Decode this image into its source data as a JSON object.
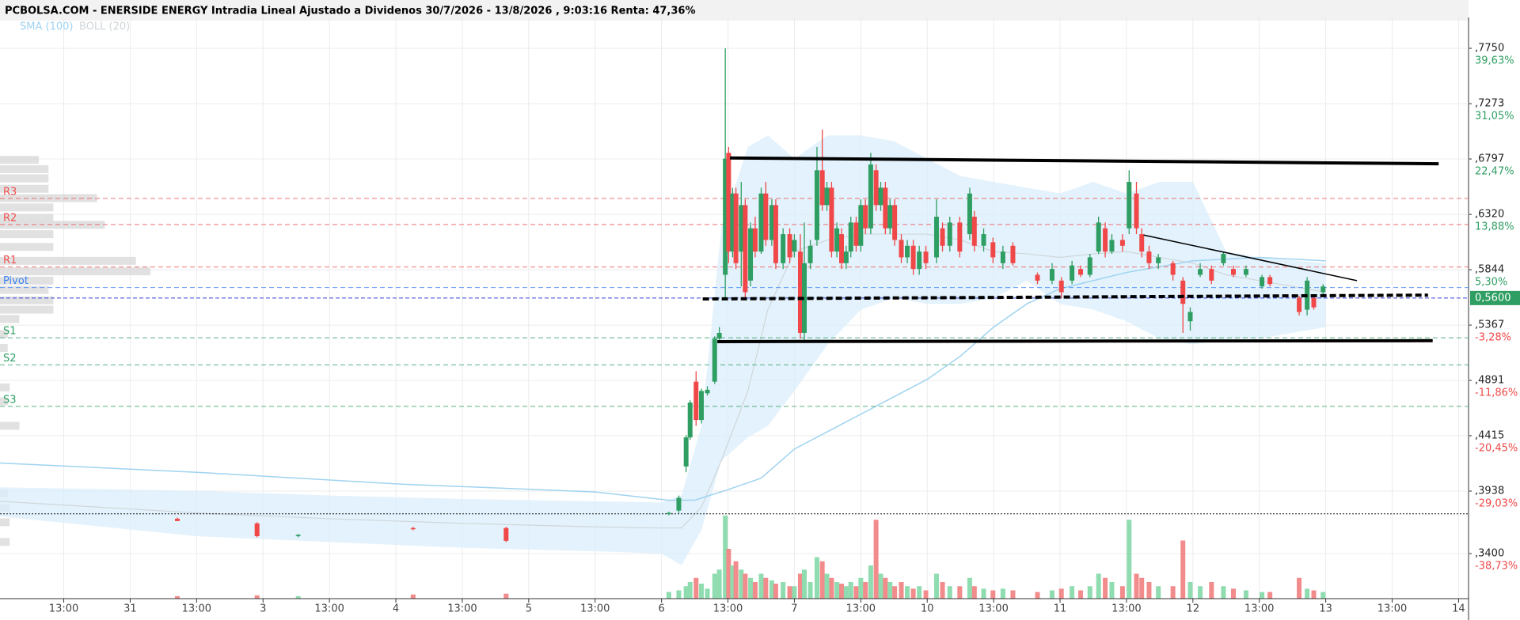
{
  "chart_data": {
    "type": "candlestick",
    "title": "PCBOLSA.COM - ENERSIDE ENERGY Intradia Lineal Ajustado a Dividenos 30/7/2026 - 13/8/2026 , 9:03:16 Renta: 47,36%",
    "indicators": [
      {
        "name": "SMA (100)",
        "color": "#9fd3f0"
      },
      {
        "name": "BOLL (20)",
        "color": "#d0d6da"
      }
    ],
    "up_color": "#2e9e62",
    "down_color": "#f04848",
    "up_volume_color": "#8fdcb0",
    "down_volume_color": "#f28b8b",
    "xlim": [
      -0.96,
      21.15
    ],
    "ylim": [
      0.3012,
      0.8016
    ],
    "grid": true,
    "xticks": [
      {
        "value": 0,
        "label": "13:00"
      },
      {
        "value": 1,
        "label": "31"
      },
      {
        "value": 2,
        "label": "13:00"
      },
      {
        "value": 3,
        "label": "3"
      },
      {
        "value": 4,
        "label": "13:00"
      },
      {
        "value": 5,
        "label": "4"
      },
      {
        "value": 6,
        "label": "13:00"
      },
      {
        "value": 7,
        "label": "5"
      },
      {
        "value": 8,
        "label": "13:00"
      },
      {
        "value": 9,
        "label": "6"
      },
      {
        "value": 10,
        "label": "13:00"
      },
      {
        "value": 11,
        "label": "7"
      },
      {
        "value": 12,
        "label": "13:00"
      },
      {
        "value": 13,
        "label": "10"
      },
      {
        "value": 14,
        "label": "13:00"
      },
      {
        "value": 15,
        "label": "11"
      },
      {
        "value": 16,
        "label": "13:00"
      },
      {
        "value": 17,
        "label": "12"
      },
      {
        "value": 18,
        "label": "13:00"
      },
      {
        "value": 19,
        "label": "13"
      },
      {
        "value": 20,
        "label": "13:00"
      },
      {
        "value": 21,
        "label": "14"
      }
    ],
    "yticks": [
      {
        "value": 0.775,
        "label": ",7750"
      },
      {
        "value": 0.7273,
        "label": ",7273"
      },
      {
        "value": 0.6797,
        "label": ",6797"
      },
      {
        "value": 0.632,
        "label": ",6320"
      },
      {
        "value": 0.5844,
        "label": ",5844"
      },
      {
        "value": 0.5367,
        "label": ",5367"
      },
      {
        "value": 0.4891,
        "label": ",4891"
      },
      {
        "value": 0.4415,
        "label": ",4415"
      },
      {
        "value": 0.3938,
        "label": ",3938"
      },
      {
        "value": 0.34,
        "label": ",3400"
      }
    ],
    "ytick_returns": [
      {
        "value": 39.63,
        "label": "39,63%"
      },
      {
        "value": 31.05,
        "label": "31,05%"
      },
      {
        "value": 22.47,
        "label": "22,47%"
      },
      {
        "value": 13.88,
        "label": "13,88%"
      },
      {
        "value": 5.3,
        "label": "5,30%"
      },
      {
        "value": -3.28,
        "label": "-3,28%"
      },
      {
        "value": -11.86,
        "label": "-11,86%"
      },
      {
        "value": -20.45,
        "label": "-20,45%"
      },
      {
        "value": -29.03,
        "label": "-29,03%"
      },
      {
        "value": -38.73,
        "label": "-38,73%"
      }
    ],
    "last": {
      "value": 0.56,
      "label": "0,5600",
      "color": "#2e9e62"
    },
    "levels": [
      {
        "name": "R3",
        "value": 0.6458,
        "color": "#f05050"
      },
      {
        "name": "R2",
        "value": 0.6233,
        "color": "#f05050"
      },
      {
        "name": "R1",
        "value": 0.5867,
        "color": "#f05050"
      },
      {
        "name": "Pivot",
        "value": 0.569,
        "color": "#3b82f6"
      },
      {
        "name": "S1",
        "value": 0.5258,
        "color": "#2e9e62"
      },
      {
        "name": "S2",
        "value": 0.5025,
        "color": "#2e9e62"
      },
      {
        "name": "S3",
        "value": 0.4667,
        "color": "#2e9e62"
      }
    ],
    "last_line_color": "#3344dd",
    "ref_line": 0.3742,
    "x": [
      1.71,
      2.91,
      3.53,
      5.26,
      6.66,
      9.11,
      9.26,
      9.37,
      9.43,
      9.52,
      9.6,
      9.69,
      9.8,
      9.87,
      9.96,
      10.01,
      10.07,
      10.12,
      10.2,
      10.26,
      10.34,
      10.41,
      10.5,
      10.57,
      10.66,
      10.72,
      10.83,
      10.93,
      11.0,
      11.09,
      11.15,
      11.24,
      11.34,
      11.42,
      11.49,
      11.56,
      11.64,
      11.71,
      11.78,
      11.85,
      11.93,
      12.0,
      12.07,
      12.15,
      12.23,
      12.3,
      12.37,
      12.44,
      12.51,
      12.61,
      12.7,
      12.79,
      12.88,
      12.98,
      13.14,
      13.23,
      13.34,
      13.49,
      13.64,
      13.71,
      13.85,
      13.99,
      14.14,
      14.29,
      14.66,
      14.88,
      15.02,
      15.18,
      15.31,
      15.45,
      15.58,
      15.68,
      15.78,
      15.94,
      16.04,
      16.15,
      16.23,
      16.34,
      16.48,
      16.7,
      16.85,
      16.96,
      17.11,
      17.28,
      17.46,
      17.61,
      17.8,
      18.04,
      18.16,
      18.6,
      18.72,
      18.82,
      18.96
    ],
    "open": [
      0.37,
      0.366,
      0.355,
      0.362,
      0.362,
      0.374,
      0.377,
      0.415,
      0.44,
      0.488,
      0.455,
      0.478,
      0.488,
      0.525,
      0.58,
      0.685,
      0.6,
      0.65,
      0.6,
      0.64,
      0.575,
      0.62,
      0.6,
      0.65,
      0.61,
      0.64,
      0.59,
      0.615,
      0.6,
      0.6,
      0.53,
      0.59,
      0.61,
      0.67,
      0.64,
      0.655,
      0.6,
      0.615,
      0.59,
      0.6,
      0.625,
      0.605,
      0.64,
      0.62,
      0.67,
      0.64,
      0.655,
      0.62,
      0.64,
      0.61,
      0.595,
      0.605,
      0.585,
      0.6,
      0.595,
      0.62,
      0.605,
      0.625,
      0.615,
      0.63,
      0.605,
      0.608,
      0.59,
      0.605,
      0.58,
      0.575,
      0.575,
      0.575,
      0.585,
      0.58,
      0.6,
      0.62,
      0.6,
      0.61,
      0.62,
      0.65,
      0.615,
      0.6,
      0.59,
      0.59,
      0.575,
      0.54,
      0.58,
      0.585,
      0.59,
      0.585,
      0.58,
      0.57,
      0.578,
      0.56,
      0.55,
      0.56,
      0.565
    ],
    "high": [
      0.371,
      0.367,
      0.357,
      0.363,
      0.363,
      0.376,
      0.39,
      0.442,
      0.472,
      0.497,
      0.482,
      0.484,
      0.527,
      0.535,
      0.775,
      0.69,
      0.655,
      0.655,
      0.66,
      0.645,
      0.625,
      0.63,
      0.655,
      0.66,
      0.645,
      0.645,
      0.62,
      0.62,
      0.615,
      0.615,
      0.625,
      0.61,
      0.69,
      0.705,
      0.66,
      0.66,
      0.625,
      0.62,
      0.605,
      0.63,
      0.63,
      0.645,
      0.645,
      0.685,
      0.675,
      0.66,
      0.66,
      0.645,
      0.645,
      0.615,
      0.61,
      0.61,
      0.605,
      0.605,
      0.645,
      0.625,
      0.63,
      0.63,
      0.655,
      0.635,
      0.62,
      0.612,
      0.605,
      0.608,
      0.582,
      0.59,
      0.578,
      0.592,
      0.588,
      0.598,
      0.63,
      0.625,
      0.615,
      0.615,
      0.67,
      0.66,
      0.62,
      0.605,
      0.598,
      0.592,
      0.578,
      0.552,
      0.59,
      0.588,
      0.6,
      0.588,
      0.588,
      0.58,
      0.58,
      0.562,
      0.578,
      0.562,
      0.572
    ],
    "low": [
      0.368,
      0.354,
      0.354,
      0.36,
      0.35,
      0.373,
      0.375,
      0.41,
      0.438,
      0.45,
      0.452,
      0.476,
      0.486,
      0.522,
      0.56,
      0.59,
      0.595,
      0.585,
      0.57,
      0.558,
      0.57,
      0.595,
      0.598,
      0.605,
      0.605,
      0.585,
      0.585,
      0.59,
      0.595,
      0.525,
      0.522,
      0.585,
      0.605,
      0.635,
      0.635,
      0.595,
      0.595,
      0.585,
      0.585,
      0.595,
      0.6,
      0.6,
      0.615,
      0.615,
      0.635,
      0.635,
      0.615,
      0.615,
      0.605,
      0.59,
      0.59,
      0.58,
      0.58,
      0.585,
      0.59,
      0.6,
      0.6,
      0.595,
      0.61,
      0.6,
      0.6,
      0.59,
      0.585,
      0.588,
      0.572,
      0.572,
      0.56,
      0.572,
      0.578,
      0.578,
      0.598,
      0.595,
      0.598,
      0.6,
      0.615,
      0.615,
      0.595,
      0.585,
      0.585,
      0.575,
      0.53,
      0.532,
      0.578,
      0.572,
      0.588,
      0.578,
      0.578,
      0.568,
      0.57,
      0.545,
      0.545,
      0.55,
      0.562
    ],
    "close": [
      0.368,
      0.355,
      0.356,
      0.361,
      0.351,
      0.375,
      0.388,
      0.44,
      0.47,
      0.455,
      0.48,
      0.481,
      0.525,
      0.53,
      0.68,
      0.6,
      0.65,
      0.59,
      0.64,
      0.565,
      0.62,
      0.6,
      0.65,
      0.61,
      0.64,
      0.59,
      0.615,
      0.595,
      0.61,
      0.53,
      0.59,
      0.605,
      0.67,
      0.64,
      0.655,
      0.6,
      0.62,
      0.59,
      0.6,
      0.625,
      0.605,
      0.64,
      0.62,
      0.675,
      0.64,
      0.655,
      0.62,
      0.64,
      0.61,
      0.595,
      0.605,
      0.585,
      0.6,
      0.59,
      0.63,
      0.605,
      0.625,
      0.6,
      0.65,
      0.605,
      0.615,
      0.595,
      0.6,
      0.59,
      0.575,
      0.585,
      0.565,
      0.588,
      0.58,
      0.595,
      0.625,
      0.6,
      0.61,
      0.605,
      0.66,
      0.62,
      0.6,
      0.59,
      0.595,
      0.58,
      0.555,
      0.548,
      0.585,
      0.575,
      0.598,
      0.58,
      0.585,
      0.578,
      0.572,
      0.548,
      0.575,
      0.552,
      0.57
    ],
    "volume": [
      3,
      4,
      3,
      5,
      6,
      8,
      10,
      15,
      20,
      25,
      18,
      12,
      30,
      35,
      100,
      60,
      40,
      45,
      35,
      30,
      25,
      20,
      30,
      25,
      22,
      18,
      20,
      15,
      15,
      30,
      35,
      20,
      50,
      45,
      30,
      25,
      20,
      18,
      15,
      20,
      15,
      25,
      20,
      40,
      95,
      30,
      25,
      20,
      15,
      20,
      15,
      12,
      15,
      10,
      30,
      20,
      15,
      15,
      25,
      15,
      12,
      10,
      12,
      10,
      8,
      10,
      12,
      15,
      10,
      15,
      30,
      25,
      20,
      15,
      95,
      30,
      25,
      20,
      15,
      15,
      70,
      20,
      15,
      20,
      15,
      12,
      10,
      8,
      8,
      25,
      12,
      10,
      8
    ],
    "sma": {
      "x": [
        -0.96,
        2,
        5,
        8,
        9.1,
        9.5,
        10,
        10.5,
        11,
        11.5,
        12,
        12.5,
        13,
        13.5,
        14,
        14.5,
        15,
        15.5,
        16,
        17,
        18,
        19
      ],
      "values": [
        0.418,
        0.41,
        0.4,
        0.393,
        0.386,
        0.386,
        0.395,
        0.405,
        0.43,
        0.445,
        0.46,
        0.475,
        0.49,
        0.51,
        0.535,
        0.555,
        0.568,
        0.575,
        0.582,
        0.592,
        0.595,
        0.592
      ]
    },
    "boll": {
      "x": [
        -0.96,
        2,
        4,
        6,
        8,
        9,
        9.3,
        9.6,
        9.9,
        10.3,
        10.6,
        11,
        11.5,
        12,
        12.5,
        13,
        13.5,
        14,
        14.5,
        15,
        15.5,
        16,
        16.5,
        17,
        17.5,
        18,
        19
      ],
      "upper": [
        0.397,
        0.394,
        0.39,
        0.387,
        0.385,
        0.384,
        0.39,
        0.45,
        0.62,
        0.69,
        0.7,
        0.68,
        0.7,
        0.7,
        0.695,
        0.68,
        0.665,
        0.66,
        0.655,
        0.65,
        0.66,
        0.65,
        0.66,
        0.66,
        0.6,
        0.595,
        0.59
      ],
      "lower": [
        0.372,
        0.355,
        0.35,
        0.345,
        0.342,
        0.34,
        0.33,
        0.36,
        0.42,
        0.44,
        0.45,
        0.48,
        0.52,
        0.55,
        0.56,
        0.555,
        0.555,
        0.56,
        0.575,
        0.555,
        0.55,
        0.54,
        0.525,
        0.52,
        0.525,
        0.525,
        0.535
      ],
      "mid": [
        0.385,
        0.375,
        0.37,
        0.366,
        0.363,
        0.362,
        0.362,
        0.38,
        0.42,
        0.48,
        0.55,
        0.6,
        0.61,
        0.615,
        0.615,
        0.615,
        0.61,
        0.6,
        0.598,
        0.595,
        0.598,
        0.6,
        0.595,
        0.59,
        0.58,
        0.575,
        0.565
      ]
    },
    "drawings": [
      {
        "x": [
          10.03,
          20.7
        ],
        "y": [
          0.6806,
          0.6756
        ],
        "style": "solid-thick"
      },
      {
        "x": [
          9.84,
          20.61
        ],
        "y": [
          0.5225,
          0.5233
        ],
        "style": "solid-thick"
      },
      {
        "x": [
          9.62,
          20.54
        ],
        "y": [
          0.5592,
          0.5625
        ],
        "style": "dashed-thick"
      },
      {
        "x": [
          16.26,
          19.47
        ],
        "y": [
          0.6142,
          0.575
        ],
        "style": "solid-thin"
      }
    ],
    "volume_profile": {
      "prices": [
        0.679,
        0.671,
        0.663,
        0.654,
        0.646,
        0.638,
        0.629,
        0.623,
        0.615,
        0.604,
        0.592,
        0.583,
        0.575,
        0.567,
        0.558,
        0.55,
        0.542,
        0.529,
        0.517,
        0.483,
        0.471,
        0.45,
        0.392,
        0.379,
        0.367,
        0.35
      ],
      "sizes": [
        40,
        50,
        50,
        50,
        100,
        55,
        55,
        108,
        55,
        55,
        140,
        155,
        55,
        50,
        55,
        55,
        20,
        8,
        8,
        10,
        8,
        20,
        8,
        10,
        10,
        10
      ]
    }
  }
}
